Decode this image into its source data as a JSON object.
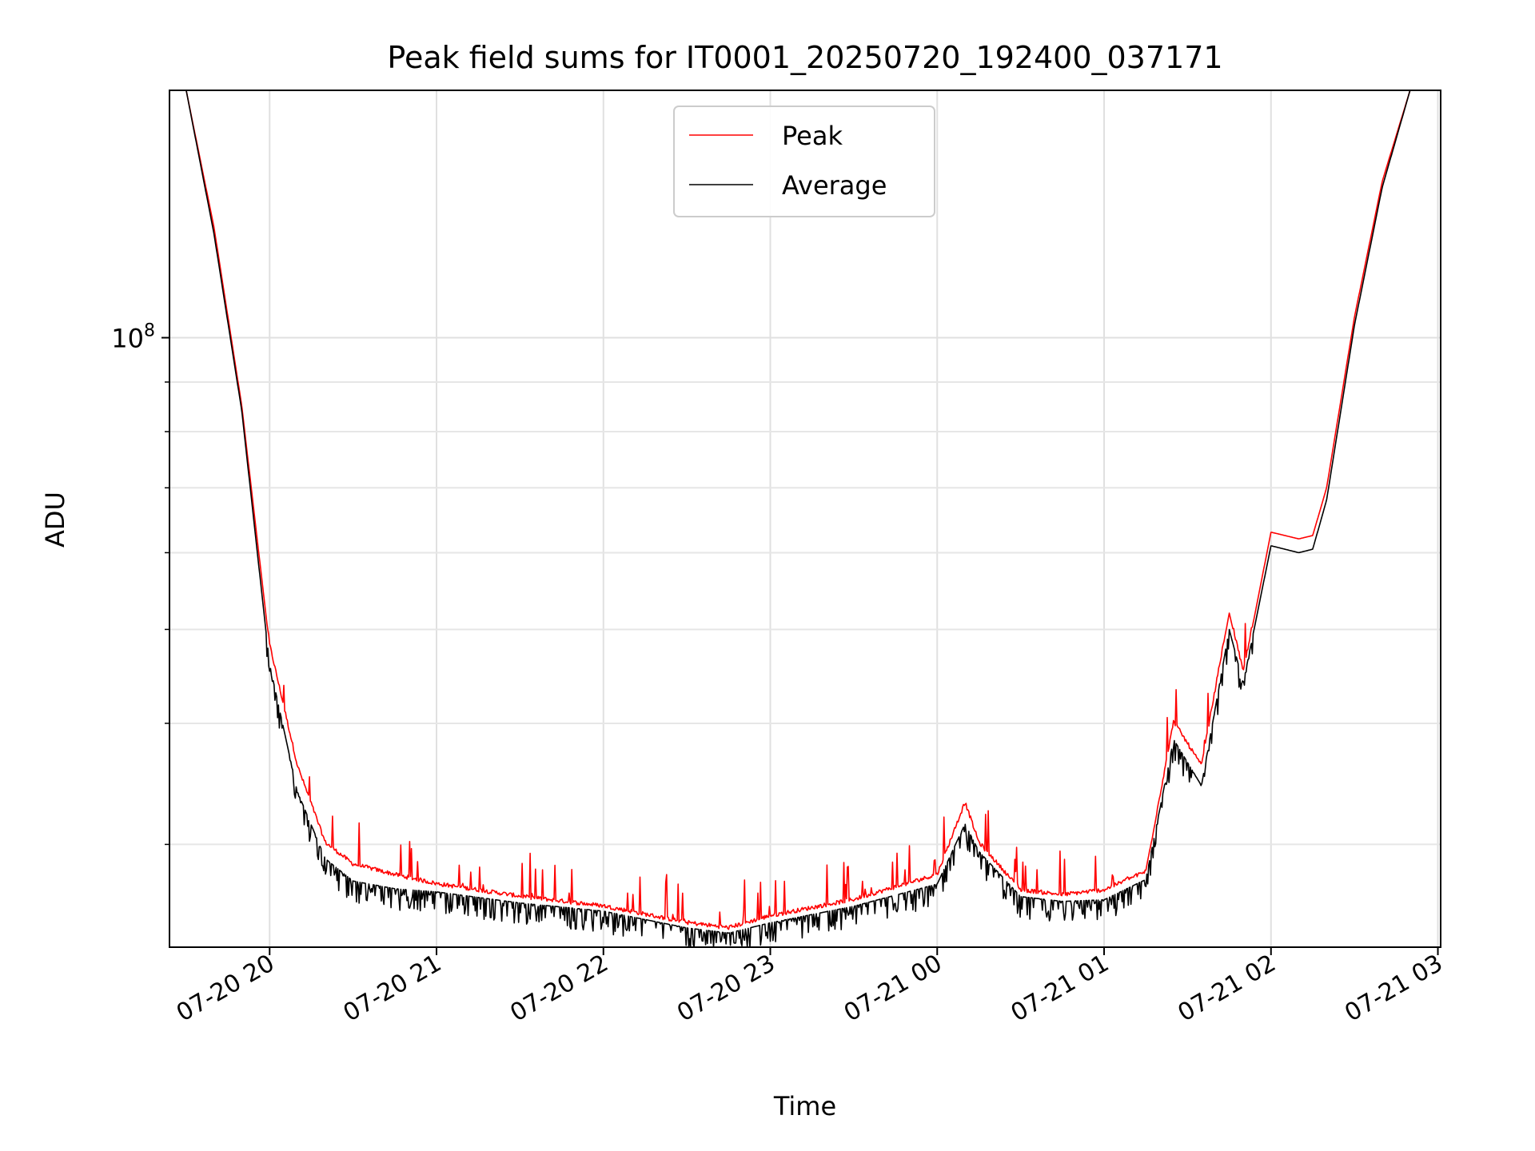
{
  "chart_data": {
    "type": "line",
    "title": "Peak field sums for IT0001_20250720_192400_037171",
    "xlabel": "Time",
    "ylabel": "ADU",
    "yscale": "log",
    "grid": true,
    "legend_placement": "upper center",
    "x_ticks": [
      "07-20 20",
      "07-20 21",
      "07-20 22",
      "07-20 23",
      "07-21 00",
      "07-21 01",
      "07-21 02",
      "07-21 03"
    ],
    "y_tick_label": "10^8",
    "xlim": [
      "2025-07-20 19:24",
      "2025-07-21 03:01"
    ],
    "ylim": [
      23500000,
      180000000
    ],
    "series": [
      {
        "name": "Peak",
        "color": "#ff0000",
        "x": [
          "2025-07-20 19:24",
          "2025-07-20 19:30",
          "2025-07-20 19:40",
          "2025-07-20 19:50",
          "2025-07-20 20:00",
          "2025-07-20 20:10",
          "2025-07-20 20:20",
          "2025-07-20 20:30",
          "2025-07-20 20:45",
          "2025-07-20 21:00",
          "2025-07-20 21:30",
          "2025-07-20 22:00",
          "2025-07-20 22:30",
          "2025-07-20 22:45",
          "2025-07-20 23:00",
          "2025-07-20 23:30",
          "2025-07-21 00:00",
          "2025-07-21 00:10",
          "2025-07-21 00:15",
          "2025-07-21 00:30",
          "2025-07-21 00:45",
          "2025-07-21 01:00",
          "2025-07-21 01:15",
          "2025-07-21 01:25",
          "2025-07-21 01:35",
          "2025-07-21 01:45",
          "2025-07-21 01:50",
          "2025-07-21 02:00",
          "2025-07-21 02:10",
          "2025-07-21 02:15",
          "2025-07-21 02:20",
          "2025-07-21 02:30",
          "2025-07-21 02:40",
          "2025-07-21 02:50"
        ],
        "y": [
          180000000,
          180000000,
          130000000,
          85000000,
          48000000,
          36000000,
          30000000,
          28500000,
          27800000,
          27200000,
          26400000,
          25800000,
          24800000,
          24500000,
          25200000,
          26200000,
          27800000,
          33000000,
          30000000,
          26800000,
          26500000,
          26800000,
          28000000,
          40000000,
          36000000,
          52000000,
          45000000,
          63000000,
          62000000,
          62500000,
          70000000,
          105000000,
          145000000,
          180000000
        ]
      },
      {
        "name": "Average",
        "color": "#000000",
        "x": [
          "2025-07-20 19:24",
          "2025-07-20 19:30",
          "2025-07-20 19:40",
          "2025-07-20 19:50",
          "2025-07-20 20:00",
          "2025-07-20 20:10",
          "2025-07-20 20:20",
          "2025-07-20 20:30",
          "2025-07-20 20:45",
          "2025-07-20 21:00",
          "2025-07-20 21:30",
          "2025-07-20 22:00",
          "2025-07-20 22:30",
          "2025-07-20 22:45",
          "2025-07-20 23:00",
          "2025-07-20 23:30",
          "2025-07-21 00:00",
          "2025-07-21 00:10",
          "2025-07-21 00:15",
          "2025-07-21 00:30",
          "2025-07-21 00:45",
          "2025-07-21 01:00",
          "2025-07-21 01:15",
          "2025-07-21 01:25",
          "2025-07-21 01:35",
          "2025-07-21 01:45",
          "2025-07-21 01:50",
          "2025-07-21 02:00",
          "2025-07-21 02:10",
          "2025-07-21 02:15",
          "2025-07-21 02:20",
          "2025-07-21 02:30",
          "2025-07-21 02:40",
          "2025-07-21 02:50"
        ],
        "y": [
          180000000,
          180000000,
          128000000,
          84000000,
          46000000,
          34000000,
          29000000,
          27500000,
          27000000,
          26800000,
          26100000,
          25600000,
          24600000,
          24300000,
          24900000,
          25900000,
          27300000,
          31500000,
          29500000,
          26500000,
          26200000,
          26300000,
          27600000,
          38500000,
          34500000,
          50000000,
          44000000,
          61000000,
          60000000,
          60500000,
          68000000,
          103000000,
          143000000,
          180000000
        ]
      }
    ]
  }
}
